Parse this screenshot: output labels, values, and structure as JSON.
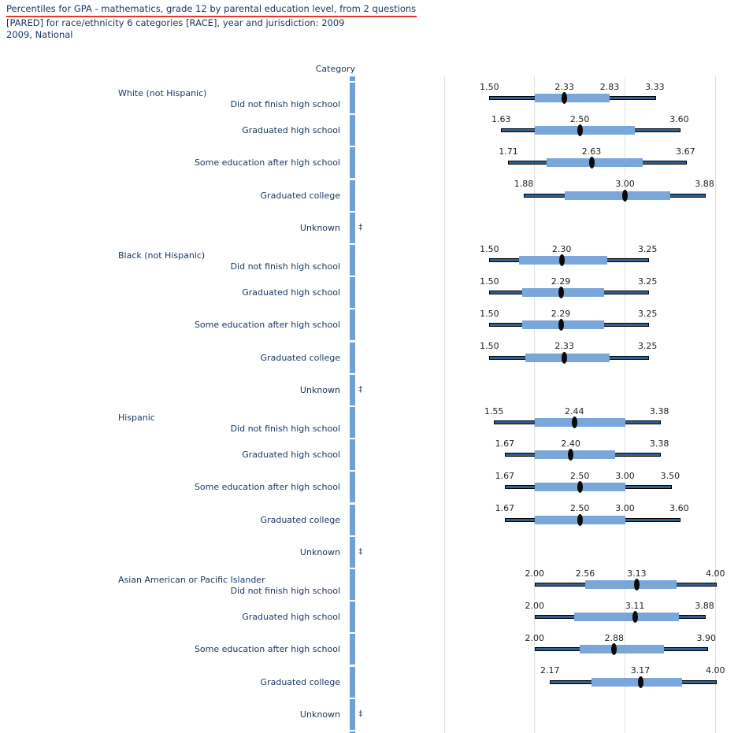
{
  "header": {
    "title_line1": "Percentiles for GPA - mathematics, grade 12 by parental education level, from 2 questions",
    "title_line2": "[PARED] for race/ethnicity 6 categories [RACE], year and jurisdiction: 2009",
    "title_line3": "2009, National"
  },
  "colors": {
    "text_navy": "#17365d",
    "number_text": "#1f1f1f",
    "title_underline_red": "#e03a2f",
    "category_strip_blue": "#6fa0d6",
    "box_blue": "#7aa6da",
    "whisker_fill_blue": "#2d6194",
    "whisker_border": "#000000",
    "median_black": "#0a0a0a",
    "gridline_gray": "#e0e0e0"
  },
  "chart_data": {
    "type": "bar",
    "subtype": "horizontal-percentile-bars",
    "title": "Percentiles for GPA - mathematics, grade 12 by parental education level, from 2 questions [PARED] for race/ethnicity 6 categories [RACE], year and jurisdiction: 2009",
    "subtitle": "2009, National",
    "column_header": "Category",
    "suppressed_symbol": "‡",
    "axis": {
      "value_min": 1.0,
      "value_max": 4.0,
      "gridlines": [
        1.0,
        2.0,
        3.0,
        4.0
      ],
      "grid": true
    },
    "legend_note": "thin line = 10th-90th percentile range, thick bar = 25th-75th percentile range, black marker = median (50th percentile); ‡ = reporting standards not met",
    "groups": [
      {
        "label": "White (not Hispanic)",
        "rows": [
          {
            "category": "Did not finish high school",
            "suppressed": false,
            "percentiles": {
              "p10": 1.5,
              "p25": 2.0,
              "p50": 2.33,
              "p75": 2.83,
              "p90": 3.33
            },
            "value_labels": [
              "1.50",
              "2.33",
              "2.83",
              "3.33"
            ]
          },
          {
            "category": "Graduated high school",
            "suppressed": false,
            "percentiles": {
              "p10": 1.63,
              "p25": 2.0,
              "p50": 2.5,
              "p75": 3.11,
              "p90": 3.6
            },
            "value_labels": [
              "1.63",
              "2.50",
              "3.60"
            ]
          },
          {
            "category": "Some education after high school",
            "suppressed": false,
            "percentiles": {
              "p10": 1.71,
              "p25": 2.13,
              "p50": 2.63,
              "p75": 3.2,
              "p90": 3.67
            },
            "value_labels": [
              "1.71",
              "2.63",
              "3.67"
            ]
          },
          {
            "category": "Graduated college",
            "suppressed": false,
            "percentiles": {
              "p10": 1.88,
              "p25": 2.33,
              "p50": 3.0,
              "p75": 3.5,
              "p90": 3.88
            },
            "value_labels": [
              "1.88",
              "3.00",
              "3.88"
            ]
          },
          {
            "category": "Unknown",
            "suppressed": true
          }
        ]
      },
      {
        "label": "Black (not Hispanic)",
        "rows": [
          {
            "category": "Did not finish high school",
            "suppressed": false,
            "percentiles": {
              "p10": 1.5,
              "p25": 1.83,
              "p50": 2.3,
              "p75": 2.8,
              "p90": 3.25
            },
            "value_labels": [
              "1.50",
              "2.30",
              "3.25"
            ]
          },
          {
            "category": "Graduated high school",
            "suppressed": false,
            "percentiles": {
              "p10": 1.5,
              "p25": 1.86,
              "p50": 2.29,
              "p75": 2.77,
              "p90": 3.25
            },
            "value_labels": [
              "1.50",
              "2.29",
              "3.25"
            ]
          },
          {
            "category": "Some education after high school",
            "suppressed": false,
            "percentiles": {
              "p10": 1.5,
              "p25": 1.86,
              "p50": 2.29,
              "p75": 2.77,
              "p90": 3.25
            },
            "value_labels": [
              "1.50",
              "2.29",
              "3.25"
            ]
          },
          {
            "category": "Graduated college",
            "suppressed": false,
            "percentiles": {
              "p10": 1.5,
              "p25": 1.9,
              "p50": 2.33,
              "p75": 2.83,
              "p90": 3.25
            },
            "value_labels": [
              "1.50",
              "2.33",
              "3.25"
            ]
          },
          {
            "category": "Unknown",
            "suppressed": true
          }
        ]
      },
      {
        "label": "Hispanic",
        "rows": [
          {
            "category": "Did not finish high school",
            "suppressed": false,
            "percentiles": {
              "p10": 1.55,
              "p25": 2.0,
              "p50": 2.44,
              "p75": 3.0,
              "p90": 3.38
            },
            "value_labels": [
              "1.55",
              "2.44",
              "3.38"
            ]
          },
          {
            "category": "Graduated high school",
            "suppressed": false,
            "percentiles": {
              "p10": 1.67,
              "p25": 2.0,
              "p50": 2.4,
              "p75": 2.89,
              "p90": 3.38
            },
            "value_labels": [
              "1.67",
              "2.40",
              "3.38"
            ]
          },
          {
            "category": "Some education after high school",
            "suppressed": false,
            "percentiles": {
              "p10": 1.67,
              "p25": 2.0,
              "p50": 2.5,
              "p75": 3.0,
              "p90": 3.5
            },
            "value_labels": [
              "1.67",
              "2.50",
              "3.00",
              "3.50"
            ]
          },
          {
            "category": "Graduated college",
            "suppressed": false,
            "percentiles": {
              "p10": 1.67,
              "p25": 2.0,
              "p50": 2.5,
              "p75": 3.0,
              "p90": 3.6
            },
            "value_labels": [
              "1.67",
              "2.50",
              "3.00",
              "3.60"
            ]
          },
          {
            "category": "Unknown",
            "suppressed": true
          }
        ]
      },
      {
        "label": "Asian American or Pacific Islander",
        "rows": [
          {
            "category": "Did not finish high school",
            "suppressed": false,
            "percentiles": {
              "p10": 2.0,
              "p25": 2.56,
              "p50": 3.13,
              "p75": 3.57,
              "p90": 4.0
            },
            "value_labels": [
              "2.00",
              "2.56",
              "3.13",
              "4.00"
            ]
          },
          {
            "category": "Graduated high school",
            "suppressed": false,
            "percentiles": {
              "p10": 2.0,
              "p25": 2.44,
              "p50": 3.11,
              "p75": 3.6,
              "p90": 3.88
            },
            "value_labels": [
              "2.00",
              "3.11",
              "3.88"
            ]
          },
          {
            "category": "Some education after high school",
            "suppressed": false,
            "percentiles": {
              "p10": 2.0,
              "p25": 2.5,
              "p50": 2.88,
              "p75": 3.43,
              "p90": 3.9
            },
            "value_labels": [
              "2.00",
              "2.88",
              "3.90"
            ]
          },
          {
            "category": "Graduated college",
            "suppressed": false,
            "percentiles": {
              "p10": 2.17,
              "p25": 2.63,
              "p50": 3.17,
              "p75": 3.63,
              "p90": 4.0
            },
            "value_labels": [
              "2.17",
              "3.17",
              "4.00"
            ]
          },
          {
            "category": "Unknown",
            "suppressed": true
          }
        ]
      }
    ]
  }
}
